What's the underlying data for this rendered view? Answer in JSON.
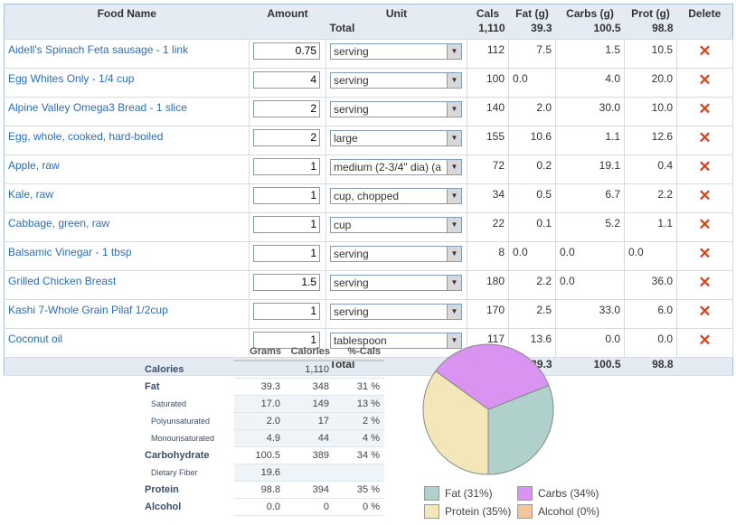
{
  "headers": [
    "Food Name",
    "Amount",
    "Unit",
    "Cals",
    "Fat (g)",
    "Carbs (g)",
    "Prot (g)",
    "Delete"
  ],
  "totals": {
    "label": "Total",
    "cals": "1,110",
    "fat": "39.3",
    "carbs": "100.5",
    "prot": "98.8"
  },
  "foods": [
    {
      "name": "Aidell's Spinach Feta sausage - 1 link",
      "amount": "0.75",
      "unit": "serving",
      "cals": "112",
      "fat": "7.5",
      "carbs": "1.5",
      "prot": "10.5"
    },
    {
      "name": "Egg Whites Only - 1/4 cup",
      "amount": "4",
      "unit": "serving",
      "cals": "100",
      "fat": "0.0",
      "carbs": "4.0",
      "prot": "20.0"
    },
    {
      "name": "Alpine Valley Omega3 Bread - 1 slice",
      "amount": "2",
      "unit": "serving",
      "cals": "140",
      "fat": "2.0",
      "carbs": "30.0",
      "prot": "10.0"
    },
    {
      "name": "Egg, whole, cooked, hard-boiled",
      "amount": "2",
      "unit": "large",
      "cals": "155",
      "fat": "10.6",
      "carbs": "1.1",
      "prot": "12.6"
    },
    {
      "name": "Apple, raw",
      "amount": "1",
      "unit": "medium (2-3/4\" dia) (a",
      "cals": "72",
      "fat": "0.2",
      "carbs": "19.1",
      "prot": "0.4"
    },
    {
      "name": "Kale, raw",
      "amount": "1",
      "unit": "cup, chopped",
      "cals": "34",
      "fat": "0.5",
      "carbs": "6.7",
      "prot": "2.2"
    },
    {
      "name": "Cabbage, green, raw",
      "amount": "1",
      "unit": "cup",
      "cals": "22",
      "fat": "0.1",
      "carbs": "5.2",
      "prot": "1.1"
    },
    {
      "name": "Balsamic Vinegar - 1 tbsp",
      "amount": "1",
      "unit": "serving",
      "cals": "8",
      "fat": "0.0",
      "carbs": "0.0",
      "prot": "0.0"
    },
    {
      "name": "Grilled Chicken Breast",
      "amount": "1.5",
      "unit": "serving",
      "cals": "180",
      "fat": "2.2",
      "carbs": "0.0",
      "prot": "36.0"
    },
    {
      "name": "Kashi 7-Whole Grain Pilaf 1/2cup",
      "amount": "1",
      "unit": "serving",
      "cals": "170",
      "fat": "2.5",
      "carbs": "33.0",
      "prot": "6.0"
    },
    {
      "name": "Coconut oil",
      "amount": "1",
      "unit": "tablespoon",
      "cals": "117",
      "fat": "13.6",
      "carbs": "0.0",
      "prot": "0.0"
    }
  ],
  "left_aligned": {
    "1": [
      "fat"
    ],
    "7": [
      "fat",
      "carbs",
      "prot"
    ],
    "8": [
      "carbs"
    ]
  },
  "nutrition": {
    "headers": [
      "Grams",
      "Calories",
      "%-Cals"
    ],
    "rows": [
      {
        "label": "Calories",
        "grams": "",
        "cal": "1,110",
        "pct": "",
        "sub": false
      },
      {
        "label": "Fat",
        "grams": "39.3",
        "cal": "348",
        "pct": "31 %",
        "sub": false
      },
      {
        "label": "Saturated",
        "grams": "17.0",
        "cal": "149",
        "pct": "13 %",
        "sub": true
      },
      {
        "label": "Polyunsaturated",
        "grams": "2.0",
        "cal": "17",
        "pct": "2 %",
        "sub": true
      },
      {
        "label": "Monounsaturated",
        "grams": "4.9",
        "cal": "44",
        "pct": "4 %",
        "sub": true
      },
      {
        "label": "Carbohydrate",
        "grams": "100.5",
        "cal": "389",
        "pct": "34 %",
        "sub": false
      },
      {
        "label": "Dietary Fiber",
        "grams": "19.6",
        "cal": "",
        "pct": "",
        "sub": true
      },
      {
        "label": "Protein",
        "grams": "98.8",
        "cal": "394",
        "pct": "35 %",
        "sub": false
      },
      {
        "label": "Alcohol",
        "grams": "0.0",
        "cal": "0",
        "pct": "0 %",
        "sub": false
      }
    ]
  },
  "chart_data": {
    "type": "pie",
    "categories": [
      "Fat",
      "Carbs",
      "Protein",
      "Alcohol"
    ],
    "values": [
      31,
      34,
      35,
      0
    ],
    "legend": [
      "Fat (31%)",
      "Carbs (34%)",
      "Protein (35%)",
      "Alcohol (0%)"
    ],
    "colors": [
      "#b0d0cc",
      "#d993f0",
      "#f3e6b8",
      "#f2c69a"
    ]
  }
}
